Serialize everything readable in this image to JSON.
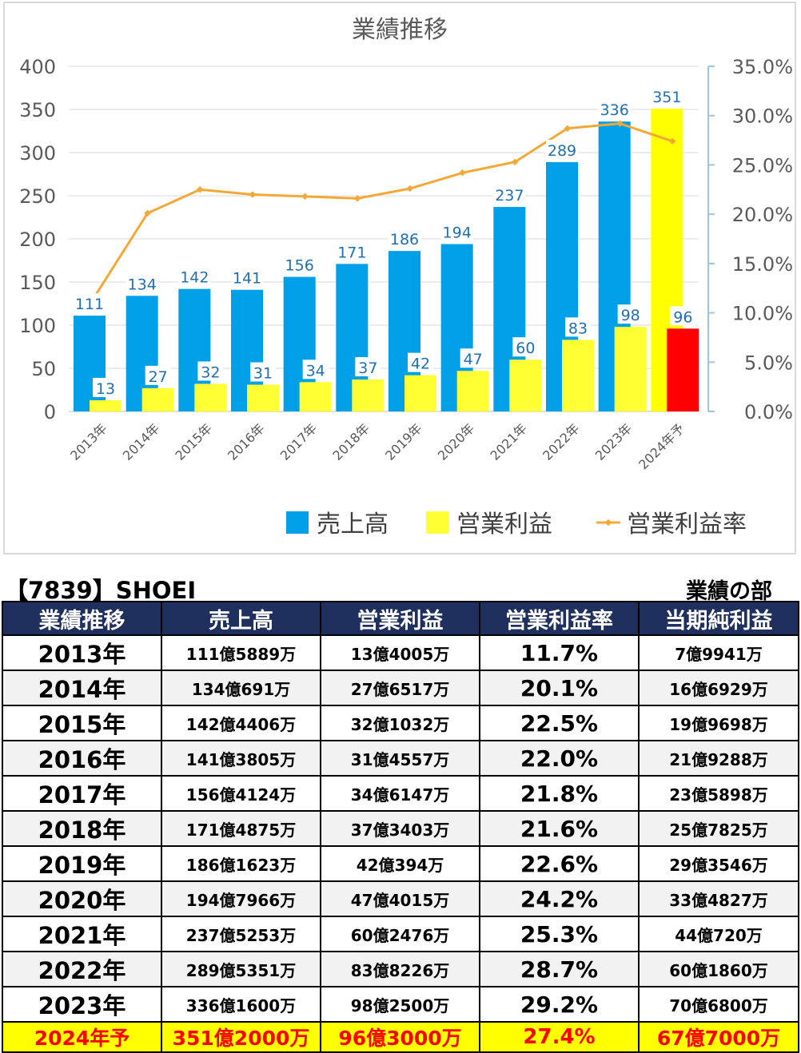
{
  "chart_data": {
    "type": "bar",
    "title": "業績推移",
    "categories": [
      "2013年",
      "2014年",
      "2015年",
      "2016年",
      "2017年",
      "2018年",
      "2019年",
      "2020年",
      "2021年",
      "2022年",
      "2023年",
      "2024年予"
    ],
    "series": [
      {
        "name": "売上高",
        "type": "bar",
        "axis": "left",
        "color": "#00a0e9",
        "values": [
          111,
          134,
          142,
          141,
          156,
          171,
          186,
          194,
          237,
          289,
          336,
          351
        ],
        "highlight_last_color": "#ffff00"
      },
      {
        "name": "営業利益",
        "type": "bar",
        "axis": "left",
        "color": "#ffff33",
        "values": [
          13,
          27,
          32,
          31,
          34,
          37,
          42,
          47,
          60,
          83,
          98,
          96
        ],
        "highlight_last_color": "#ff0000"
      },
      {
        "name": "営業利益率",
        "type": "line",
        "axis": "right",
        "color": "#f4a836",
        "values": [
          11.7,
          20.1,
          22.5,
          22.0,
          21.8,
          21.6,
          22.6,
          24.2,
          25.3,
          28.7,
          29.2,
          27.4
        ]
      }
    ],
    "ylim_left": [
      0,
      400
    ],
    "yticks_left": [
      "0",
      "50",
      "100",
      "150",
      "200",
      "250",
      "300",
      "350",
      "400"
    ],
    "ylim_right": [
      0,
      35
    ],
    "yticks_right": [
      "0.0%",
      "5.0%",
      "10.0%",
      "15.0%",
      "20.0%",
      "25.0%",
      "30.0%",
      "35.0%"
    ],
    "grid": true,
    "legend_position": "bottom"
  },
  "info": {
    "ticker": "【7839】SHOEI",
    "section": "業績の部"
  },
  "table": {
    "headers": [
      "業績推移",
      "売上高",
      "営業利益",
      "営業利益率",
      "当期純利益"
    ],
    "rows": [
      {
        "year": "2013年",
        "sales": "111億5889万",
        "op": "13億4005万",
        "margin": "11.7%",
        "net": "7億9941万"
      },
      {
        "year": "2014年",
        "sales": "134億691万",
        "op": "27億6517万",
        "margin": "20.1%",
        "net": "16億6929万"
      },
      {
        "year": "2015年",
        "sales": "142億4406万",
        "op": "32億1032万",
        "margin": "22.5%",
        "net": "19億9698万"
      },
      {
        "year": "2016年",
        "sales": "141億3805万",
        "op": "31億4557万",
        "margin": "22.0%",
        "net": "21億9288万"
      },
      {
        "year": "2017年",
        "sales": "156億4124万",
        "op": "34億6147万",
        "margin": "21.8%",
        "net": "23億5898万"
      },
      {
        "year": "2018年",
        "sales": "171億4875万",
        "op": "37億3403万",
        "margin": "21.6%",
        "net": "25億7825万"
      },
      {
        "year": "2019年",
        "sales": "186億1623万",
        "op": "42億394万",
        "margin": "22.6%",
        "net": "29億3546万"
      },
      {
        "year": "2020年",
        "sales": "194億7966万",
        "op": "47億4015万",
        "margin": "24.2%",
        "net": "33億4827万"
      },
      {
        "year": "2021年",
        "sales": "237億5253万",
        "op": "60億2476万",
        "margin": "25.3%",
        "net": "44億720万"
      },
      {
        "year": "2022年",
        "sales": "289億5351万",
        "op": "83億8226万",
        "margin": "28.7%",
        "net": "60億1860万"
      },
      {
        "year": "2023年",
        "sales": "336億1600万",
        "op": "98億2500万",
        "margin": "29.2%",
        "net": "70億6800万"
      },
      {
        "year": "2024年予",
        "sales": "351億2000万",
        "op": "96億3000万",
        "margin": "27.4%",
        "net": "67億7000万",
        "forecast": true
      }
    ]
  }
}
